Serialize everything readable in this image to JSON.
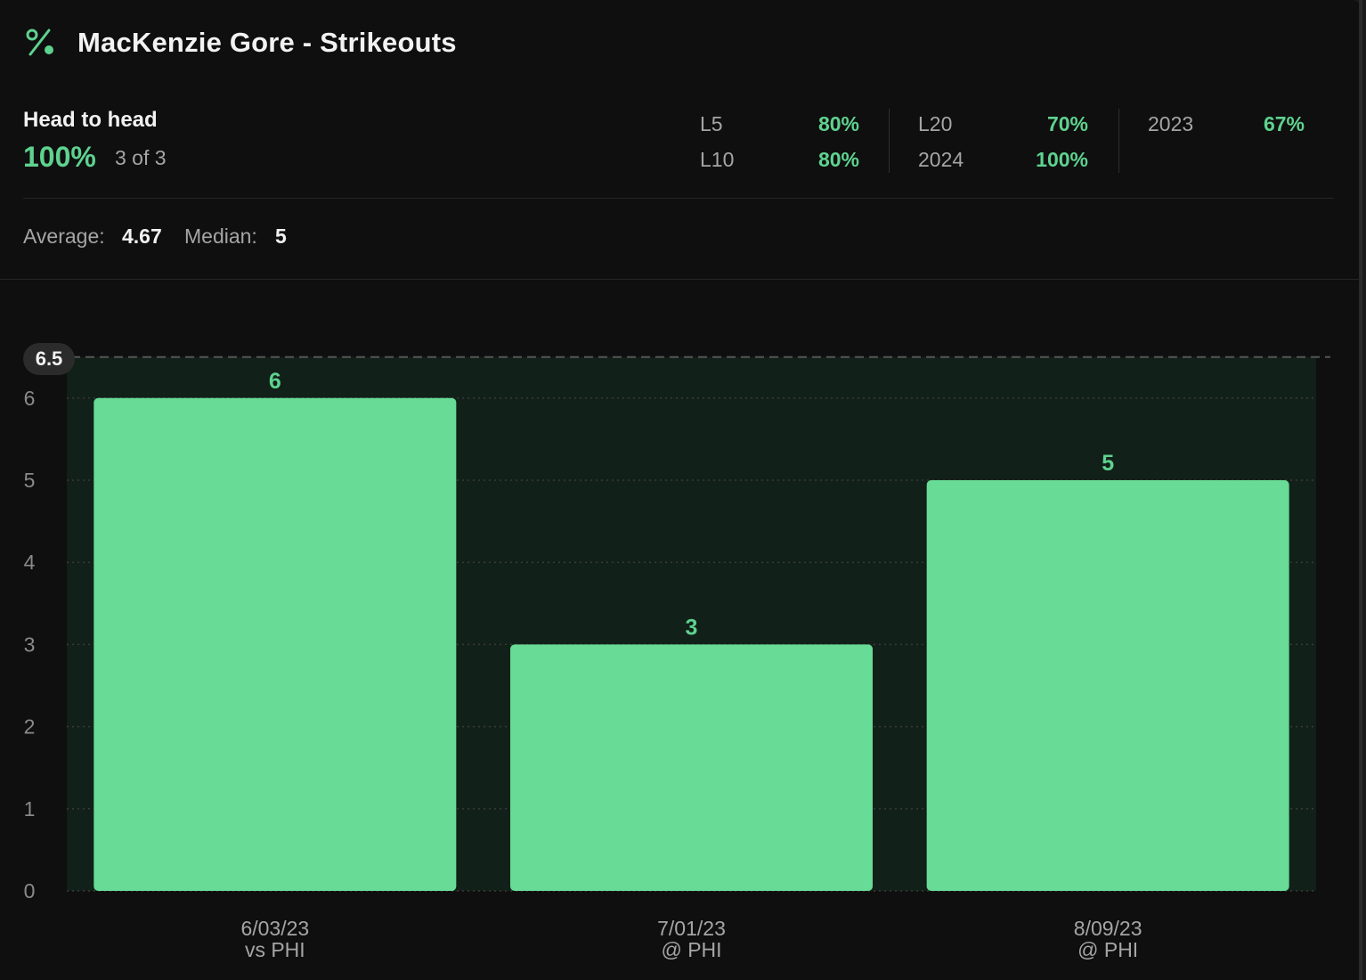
{
  "header": {
    "icon": "percent-icon",
    "title": "MacKenzie Gore - Strikeouts"
  },
  "head_to_head": {
    "label": "Head to head",
    "percent": "100%",
    "count": "3 of 3"
  },
  "splits": [
    {
      "label": "L5",
      "value": "80%"
    },
    {
      "label": "L10",
      "value": "80%"
    },
    {
      "label": "L20",
      "value": "70%"
    },
    {
      "label": "2024",
      "value": "100%"
    },
    {
      "label": "2023",
      "value": "67%"
    }
  ],
  "summary": {
    "average_label": "Average:",
    "average_value": "4.67",
    "median_label": "Median:",
    "median_value": "5"
  },
  "colors": {
    "accent": "#5ed28f",
    "bar": "#68db96",
    "background": "#0f0f0f",
    "over_zone": "#112018"
  },
  "chart_data": {
    "type": "bar",
    "categories": [
      "6/03/23",
      "7/01/23",
      "8/09/23"
    ],
    "sublabels": [
      "vs PHI",
      "@ PHI",
      "@ PHI"
    ],
    "values": [
      6,
      3,
      5
    ],
    "value_labels": [
      "6",
      "3",
      "5"
    ],
    "line": 6.5,
    "line_label": "6.5",
    "ylim": [
      0,
      6.5
    ],
    "yticks": [
      "0",
      "1",
      "2",
      "3",
      "4",
      "5",
      "6"
    ],
    "grid": true,
    "title": "",
    "xlabel": "",
    "ylabel": ""
  }
}
